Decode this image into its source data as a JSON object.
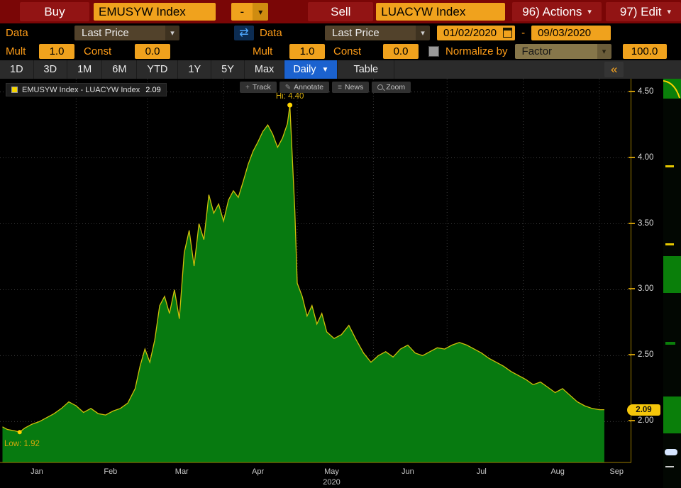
{
  "colors": {
    "amber": "#ff9d18",
    "field_amber": "#f0a21d",
    "red_bar": "#7a0606",
    "red_tile": "#921414",
    "active_blue": "#1b62cf",
    "line_yellow": "#cfc00a",
    "area_green": "#077a10",
    "marker_yellow": "#ffd400",
    "axis_amber": "#9c7d00"
  },
  "topbar": {
    "buy_label": "Buy",
    "buy_ticker": "EMUSYW Index",
    "operator": "-",
    "sell_label": "Sell",
    "sell_ticker": "LUACYW Index",
    "actions_label": "96) Actions",
    "edit_label": "97) Edit"
  },
  "row2": {
    "data_label_left": "Data",
    "price_type_left": "Last Price",
    "data_label_right": "Data",
    "price_type_right": "Last Price",
    "date_from": "01/02/2020",
    "date_separator": "-",
    "date_to": "09/03/2020"
  },
  "row3": {
    "mult_label_left": "Mult",
    "mult_value_left": "1.0",
    "const_label_left": "Const",
    "const_value_left": "0.0",
    "mult_label_right": "Mult",
    "mult_value_right": "1.0",
    "const_label_right": "Const",
    "const_value_right": "0.0",
    "normalize_label": "Normalize by",
    "factor_label": "Factor",
    "factor_value": "100.0"
  },
  "tabs": {
    "items": [
      "1D",
      "3D",
      "1M",
      "6M",
      "YTD",
      "1Y",
      "5Y",
      "Max"
    ],
    "frequency": "Daily",
    "table_label": "Table",
    "collapse_icon": "«"
  },
  "chart_toolbar": {
    "track": "Track",
    "annotate": "Annotate",
    "news": "News",
    "zoom": "Zoom"
  },
  "legend": {
    "text": "EMUSYW Index - LUACYW Index",
    "value": "2.09"
  },
  "chart_data": {
    "type": "area",
    "title": "EMUSYW Index - LUACYW Index",
    "x_unit": "day_of_year_2020",
    "xlim": [
      1,
      258
    ],
    "ylim": [
      1.69,
      4.6
    ],
    "y_ticks": [
      2.0,
      2.5,
      3.0,
      3.5,
      4.0,
      4.5
    ],
    "x_ticks": [
      {
        "label": "Jan",
        "day": 16
      },
      {
        "label": "Feb",
        "day": 46
      },
      {
        "label": "Mar",
        "day": 75
      },
      {
        "label": "Apr",
        "day": 106
      },
      {
        "label": "May",
        "day": 136
      },
      {
        "label": "Jun",
        "day": 167
      },
      {
        "label": "Jul",
        "day": 197
      },
      {
        "label": "Aug",
        "day": 228
      },
      {
        "label": "Sep",
        "day": 252
      }
    ],
    "x_gridline_days": [
      32,
      61,
      92,
      122,
      153,
      183,
      214,
      245
    ],
    "x_sublabel": {
      "label": "2020",
      "day": 136
    },
    "grid": true,
    "legend_position": "top-left",
    "high": {
      "day": 119,
      "value": 4.4,
      "label": "Hi: 4.40"
    },
    "low": {
      "day": 9,
      "value": 1.92,
      "label": "Low: 1.92"
    },
    "last": {
      "value": 2.09,
      "label": "2.09"
    },
    "series": [
      {
        "name": "EMUSYW Index - LUACYW Index",
        "x": [
          2,
          4,
          7,
          9,
          11,
          14,
          17,
          20,
          23,
          26,
          29,
          32,
          35,
          38,
          41,
          44,
          47,
          50,
          53,
          56,
          58,
          60,
          62,
          64,
          66,
          68,
          70,
          72,
          74,
          76,
          78,
          80,
          82,
          84,
          86,
          88,
          90,
          92,
          94,
          96,
          98,
          100,
          102,
          104,
          106,
          108,
          110,
          112,
          114,
          116,
          118,
          119,
          121,
          122,
          124,
          126,
          128,
          130,
          132,
          134,
          137,
          140,
          143,
          146,
          149,
          152,
          155,
          158,
          161,
          164,
          167,
          170,
          173,
          176,
          179,
          182,
          185,
          188,
          191,
          194,
          197,
          200,
          203,
          206,
          209,
          212,
          215,
          218,
          221,
          224,
          227,
          230,
          233,
          236,
          239,
          242,
          245,
          247
        ],
        "y": [
          1.96,
          1.94,
          1.93,
          1.92,
          1.95,
          1.98,
          2.0,
          2.03,
          2.06,
          2.1,
          2.15,
          2.12,
          2.07,
          2.1,
          2.06,
          2.05,
          2.08,
          2.1,
          2.14,
          2.25,
          2.42,
          2.55,
          2.45,
          2.62,
          2.88,
          2.95,
          2.82,
          3.0,
          2.78,
          3.28,
          3.45,
          3.18,
          3.5,
          3.38,
          3.72,
          3.58,
          3.65,
          3.52,
          3.68,
          3.75,
          3.7,
          3.82,
          3.95,
          4.05,
          4.12,
          4.2,
          4.25,
          4.18,
          4.08,
          4.15,
          4.26,
          4.4,
          3.6,
          3.05,
          2.95,
          2.8,
          2.88,
          2.74,
          2.82,
          2.68,
          2.63,
          2.66,
          2.73,
          2.62,
          2.52,
          2.45,
          2.5,
          2.53,
          2.49,
          2.55,
          2.58,
          2.52,
          2.5,
          2.53,
          2.56,
          2.55,
          2.58,
          2.6,
          2.58,
          2.55,
          2.52,
          2.48,
          2.45,
          2.42,
          2.38,
          2.35,
          2.32,
          2.28,
          2.3,
          2.26,
          2.22,
          2.25,
          2.2,
          2.15,
          2.12,
          2.1,
          2.09,
          2.09
        ]
      }
    ]
  }
}
